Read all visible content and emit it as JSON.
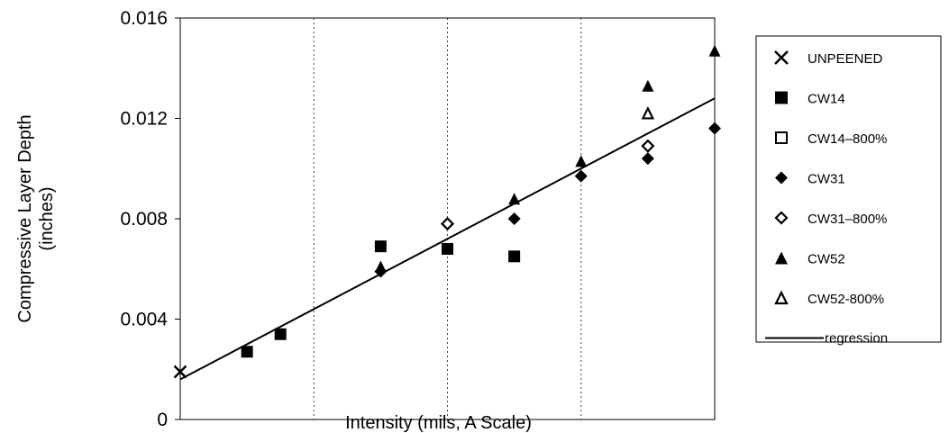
{
  "chart_data": {
    "type": "scatter",
    "title": "",
    "xlabel": "Intensity (mils, A Scale)",
    "ylabel_lines": [
      "Compressive Layer Depth",
      "(inches)"
    ],
    "xlim": [
      0,
      16
    ],
    "ylim": [
      0,
      0.016
    ],
    "x_ticks": [
      "0",
      "4",
      "8",
      "12",
      "16"
    ],
    "y_ticks": [
      "0",
      "0.004",
      "0.008",
      "0.012",
      "0.016"
    ],
    "grid": "vertical dashed",
    "legend_position": "right",
    "series": [
      {
        "name": "UNPEENED",
        "marker": "x",
        "points": [
          [
            0,
            0.0019
          ]
        ]
      },
      {
        "name": "CW14",
        "marker": "square",
        "points": [
          [
            2,
            0.0027
          ],
          [
            3,
            0.0034
          ],
          [
            6,
            0.0069
          ],
          [
            8,
            0.0068
          ],
          [
            10,
            0.0065
          ]
        ]
      },
      {
        "name": "CW14–800%",
        "marker": "square-open",
        "points": []
      },
      {
        "name": "CW31",
        "marker": "diamond",
        "points": [
          [
            6,
            0.0059
          ],
          [
            10,
            0.008
          ],
          [
            12,
            0.0097
          ],
          [
            14,
            0.0104
          ],
          [
            16,
            0.0116
          ]
        ]
      },
      {
        "name": "CW31–800%",
        "marker": "diamond-open",
        "points": [
          [
            8,
            0.0078
          ],
          [
            14,
            0.0109
          ]
        ]
      },
      {
        "name": "CW52",
        "marker": "triangle",
        "points": [
          [
            6,
            0.0061
          ],
          [
            10,
            0.0088
          ],
          [
            12,
            0.0103
          ],
          [
            14,
            0.0133
          ],
          [
            16,
            0.0147
          ]
        ]
      },
      {
        "name": "CW52-800%",
        "marker": "triangle-open",
        "points": [
          [
            14,
            0.0122
          ]
        ]
      },
      {
        "name": "regression",
        "marker": "line",
        "points": [
          [
            0,
            0.0016
          ],
          [
            16,
            0.0128
          ]
        ]
      }
    ]
  }
}
